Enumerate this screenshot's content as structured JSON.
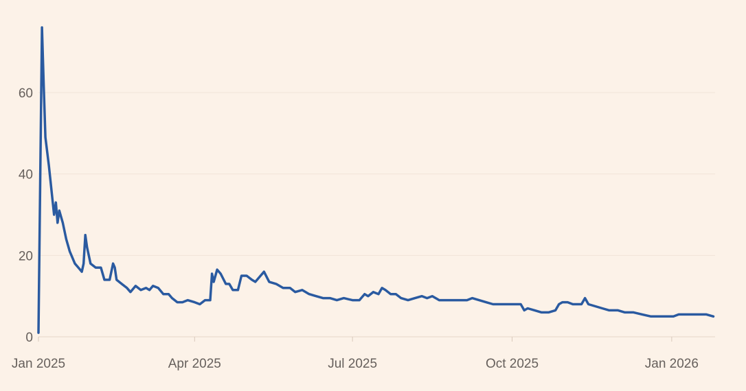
{
  "chart_data": {
    "type": "line",
    "title": "",
    "xlabel": "",
    "ylabel": "",
    "ylim": [
      0,
      76
    ],
    "xlim": [
      "2025-01-01",
      "2026-01-26"
    ],
    "grid": "horizontal",
    "colors": {
      "background": "#fcf2e8",
      "series": "#2a5aa0",
      "grid": "#f1e4d8",
      "text": "#66605c"
    },
    "y_ticks": [
      {
        "value": 0,
        "label": "0"
      },
      {
        "value": 20,
        "label": "20"
      },
      {
        "value": 40,
        "label": "40"
      },
      {
        "value": 60,
        "label": "60"
      }
    ],
    "x_ticks": [
      {
        "date": "2025-01-01",
        "label": "Jan 2025"
      },
      {
        "date": "2025-04-01",
        "label": "Apr 2025"
      },
      {
        "date": "2025-07-01",
        "label": "Jul 2025"
      },
      {
        "date": "2025-10-01",
        "label": "Oct 2025"
      },
      {
        "date": "2026-01-01",
        "label": "Jan 2026"
      }
    ],
    "series": [
      {
        "points": [
          [
            "2025-01-01",
            1
          ],
          [
            "2025-01-03",
            76
          ],
          [
            "2025-01-04",
            62
          ],
          [
            "2025-01-05",
            49
          ],
          [
            "2025-01-07",
            42
          ],
          [
            "2025-01-09",
            34
          ],
          [
            "2025-01-10",
            30
          ],
          [
            "2025-01-11",
            33
          ],
          [
            "2025-01-12",
            28
          ],
          [
            "2025-01-13",
            31
          ],
          [
            "2025-01-15",
            28
          ],
          [
            "2025-01-17",
            24
          ],
          [
            "2025-01-19",
            21
          ],
          [
            "2025-01-20",
            20
          ],
          [
            "2025-01-22",
            18
          ],
          [
            "2025-01-24",
            17
          ],
          [
            "2025-01-26",
            16
          ],
          [
            "2025-01-27",
            18
          ],
          [
            "2025-01-28",
            25
          ],
          [
            "2025-01-29",
            22
          ],
          [
            "2025-01-31",
            18
          ],
          [
            "2025-02-03",
            17
          ],
          [
            "2025-02-06",
            17
          ],
          [
            "2025-02-08",
            14
          ],
          [
            "2025-02-11",
            14
          ],
          [
            "2025-02-13",
            18
          ],
          [
            "2025-02-14",
            17
          ],
          [
            "2025-02-15",
            14
          ],
          [
            "2025-02-18",
            13
          ],
          [
            "2025-02-21",
            12
          ],
          [
            "2025-02-23",
            11
          ],
          [
            "2025-02-26",
            12.5
          ],
          [
            "2025-03-01",
            11.5
          ],
          [
            "2025-03-04",
            12
          ],
          [
            "2025-03-06",
            11.5
          ],
          [
            "2025-03-08",
            12.5
          ],
          [
            "2025-03-11",
            12
          ],
          [
            "2025-03-14",
            10.5
          ],
          [
            "2025-03-17",
            10.5
          ],
          [
            "2025-03-19",
            9.5
          ],
          [
            "2025-03-22",
            8.5
          ],
          [
            "2025-03-25",
            8.5
          ],
          [
            "2025-03-28",
            9
          ],
          [
            "2025-04-01",
            8.5
          ],
          [
            "2025-04-04",
            8
          ],
          [
            "2025-04-07",
            9
          ],
          [
            "2025-04-10",
            9
          ],
          [
            "2025-04-11",
            15.5
          ],
          [
            "2025-04-12",
            13.5
          ],
          [
            "2025-04-14",
            16.5
          ],
          [
            "2025-04-16",
            15.5
          ],
          [
            "2025-04-19",
            13
          ],
          [
            "2025-04-21",
            13
          ],
          [
            "2025-04-23",
            11.5
          ],
          [
            "2025-04-26",
            11.5
          ],
          [
            "2025-04-28",
            15
          ],
          [
            "2025-05-01",
            15
          ],
          [
            "2025-05-04",
            14
          ],
          [
            "2025-05-06",
            13.5
          ],
          [
            "2025-05-09",
            15
          ],
          [
            "2025-05-11",
            16
          ],
          [
            "2025-05-14",
            13.5
          ],
          [
            "2025-05-18",
            13
          ],
          [
            "2025-05-22",
            12
          ],
          [
            "2025-05-26",
            12
          ],
          [
            "2025-05-29",
            11
          ],
          [
            "2025-06-02",
            11.5
          ],
          [
            "2025-06-06",
            10.5
          ],
          [
            "2025-06-10",
            10
          ],
          [
            "2025-06-14",
            9.5
          ],
          [
            "2025-06-18",
            9.5
          ],
          [
            "2025-06-22",
            9
          ],
          [
            "2025-06-26",
            9.5
          ],
          [
            "2025-07-01",
            9
          ],
          [
            "2025-07-05",
            9
          ],
          [
            "2025-07-08",
            10.5
          ],
          [
            "2025-07-10",
            10
          ],
          [
            "2025-07-13",
            11
          ],
          [
            "2025-07-16",
            10.5
          ],
          [
            "2025-07-18",
            12
          ],
          [
            "2025-07-20",
            11.5
          ],
          [
            "2025-07-23",
            10.5
          ],
          [
            "2025-07-26",
            10.5
          ],
          [
            "2025-07-29",
            9.5
          ],
          [
            "2025-08-02",
            9
          ],
          [
            "2025-08-06",
            9.5
          ],
          [
            "2025-08-10",
            10
          ],
          [
            "2025-08-13",
            9.5
          ],
          [
            "2025-08-16",
            10
          ],
          [
            "2025-08-20",
            9
          ],
          [
            "2025-08-24",
            9
          ],
          [
            "2025-08-28",
            9
          ],
          [
            "2025-09-01",
            9
          ],
          [
            "2025-09-05",
            9
          ],
          [
            "2025-09-08",
            9.5
          ],
          [
            "2025-09-12",
            9
          ],
          [
            "2025-09-16",
            8.5
          ],
          [
            "2025-09-20",
            8
          ],
          [
            "2025-09-24",
            8
          ],
          [
            "2025-09-28",
            8
          ],
          [
            "2025-10-02",
            8
          ],
          [
            "2025-10-06",
            8
          ],
          [
            "2025-10-08",
            6.5
          ],
          [
            "2025-10-10",
            7
          ],
          [
            "2025-10-14",
            6.5
          ],
          [
            "2025-10-18",
            6
          ],
          [
            "2025-10-22",
            6
          ],
          [
            "2025-10-26",
            6.5
          ],
          [
            "2025-10-28",
            8
          ],
          [
            "2025-10-30",
            8.5
          ],
          [
            "2025-11-02",
            8.5
          ],
          [
            "2025-11-05",
            8
          ],
          [
            "2025-11-08",
            8
          ],
          [
            "2025-11-10",
            8
          ],
          [
            "2025-11-12",
            9.5
          ],
          [
            "2025-11-14",
            8
          ],
          [
            "2025-11-18",
            7.5
          ],
          [
            "2025-11-22",
            7
          ],
          [
            "2025-11-26",
            6.5
          ],
          [
            "2025-12-01",
            6.5
          ],
          [
            "2025-12-05",
            6
          ],
          [
            "2025-12-10",
            6
          ],
          [
            "2025-12-15",
            5.5
          ],
          [
            "2025-12-20",
            5
          ],
          [
            "2025-12-25",
            5
          ],
          [
            "2025-12-30",
            5
          ],
          [
            "2026-01-02",
            5
          ],
          [
            "2026-01-05",
            5.5
          ],
          [
            "2026-01-09",
            5.5
          ],
          [
            "2026-01-13",
            5.5
          ],
          [
            "2026-01-17",
            5.5
          ],
          [
            "2026-01-21",
            5.5
          ],
          [
            "2026-01-25",
            5
          ]
        ]
      }
    ]
  }
}
